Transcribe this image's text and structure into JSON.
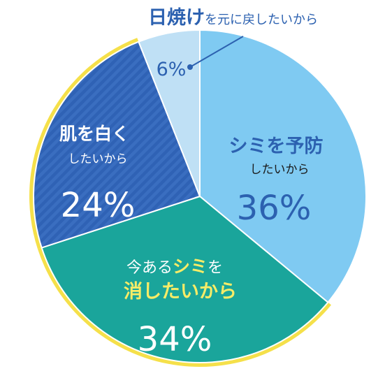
{
  "chart_data": {
    "type": "pie",
    "title": "",
    "colors": {
      "prevent": "#7fcaf2",
      "erase": "#1aa59b",
      "whiten": "#2f62b5",
      "undo_tan": "#bfe0f5",
      "highlight": "#f5e04a",
      "label_dark_blue": "#2c61b0",
      "label_white": "#ffffff",
      "label_yellow": "#f7ec67",
      "label_black": "#1a1a1a"
    },
    "slices": [
      {
        "key": "prevent",
        "value": 36,
        "value_label": "36%",
        "label_main": "シミを予防",
        "label_sub": "したいから"
      },
      {
        "key": "erase",
        "value": 34,
        "value_label": "34%",
        "label_pre": "今ある",
        "label_accent": "シミ",
        "label_post": "を",
        "label_line2": "消したいから"
      },
      {
        "key": "whiten",
        "value": 24,
        "value_label": "24%",
        "label_main": "肌を白く",
        "label_sub": "したいから"
      },
      {
        "key": "undo_tan",
        "value": 6,
        "value_label": "6%",
        "callout_bold": "日焼け",
        "callout_rest": "を元に戻したいから"
      }
    ]
  }
}
